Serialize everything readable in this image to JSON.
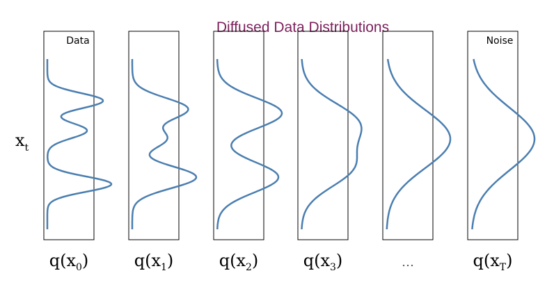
{
  "title": "Diffused Data Distributions",
  "left_label": "Data",
  "right_label": "Noise",
  "axis_label": {
    "main": "x",
    "sub": "t"
  },
  "panels": [
    {
      "main": "q(x",
      "sub": "0",
      "end": ")"
    },
    {
      "main": "q(x",
      "sub": "1",
      "end": ")"
    },
    {
      "main": "q(x",
      "sub": "2",
      "end": ")"
    },
    {
      "main": "q(x",
      "sub": "3",
      "end": ")"
    },
    {
      "main": "…"
    },
    {
      "main": "q(x",
      "sub": "T",
      "end": ")"
    }
  ]
}
